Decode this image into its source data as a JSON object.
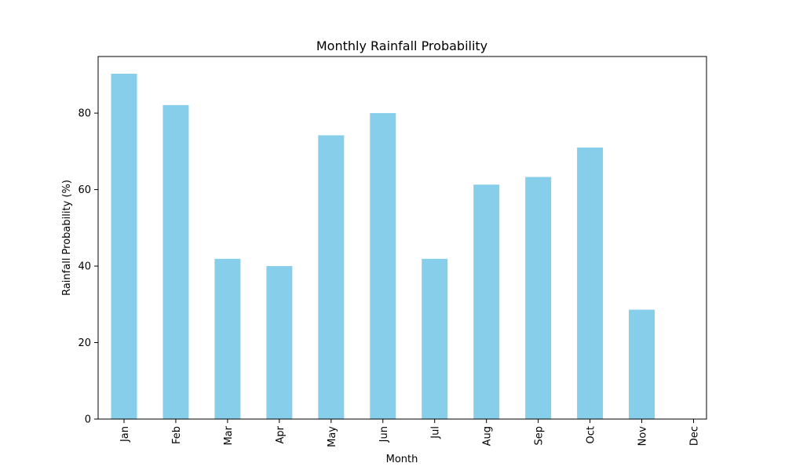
{
  "chart_data": {
    "type": "bar",
    "title": "Monthly Rainfall Probability",
    "xlabel": "Month",
    "ylabel": "Rainfall Probability (%)",
    "categories": [
      "Jan",
      "Feb",
      "Mar",
      "Apr",
      "May",
      "Jun",
      "Jul",
      "Aug",
      "Sep",
      "Oct",
      "Nov",
      "Dec"
    ],
    "values": [
      90.3,
      82.1,
      41.9,
      40.0,
      74.2,
      80.0,
      41.9,
      61.3,
      63.3,
      71.0,
      28.6,
      null
    ],
    "yticks": [
      0,
      20,
      40,
      60,
      80
    ],
    "ylim": [
      0,
      94.8
    ],
    "bar_color": "#87ceeb",
    "grid": false,
    "legend": "none",
    "xtick_rotation": "vertical"
  }
}
